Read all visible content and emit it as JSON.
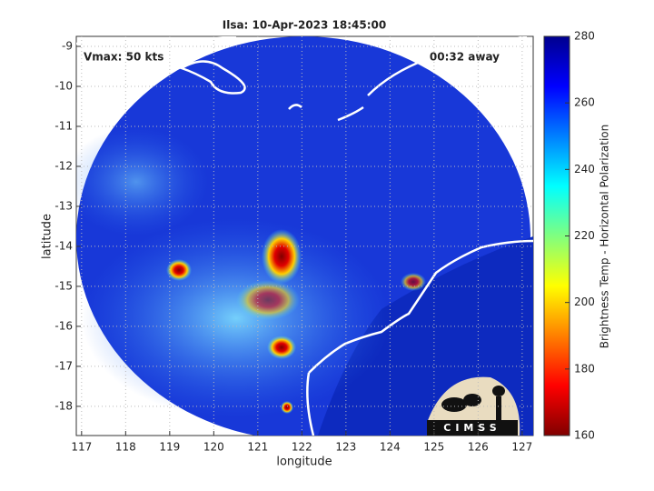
{
  "chart_data": {
    "type": "map",
    "title": "Ilsa: 10-Apr-2023 18:45:00",
    "annotations": [
      "Vmax: 50 kts",
      "00:32 away"
    ],
    "x_label": "longitude",
    "y_label": "latitude",
    "xlim": [
      116.88,
      127.25
    ],
    "xticks": [
      117,
      118,
      119,
      120,
      121,
      122,
      123,
      124,
      125,
      126,
      127
    ],
    "ylim": [
      -18.73,
      -8.75
    ],
    "yticks": [
      -9,
      -10,
      -11,
      -12,
      -13,
      -14,
      -15,
      -16,
      -17,
      -18
    ],
    "colorbar": {
      "label": "Brightness Temp - Horizontal Polarization",
      "lim": [
        160,
        280
      ],
      "ticks": [
        160,
        180,
        200,
        220,
        240,
        260,
        280
      ]
    },
    "logo": "CIMSS",
    "grid": true
  }
}
